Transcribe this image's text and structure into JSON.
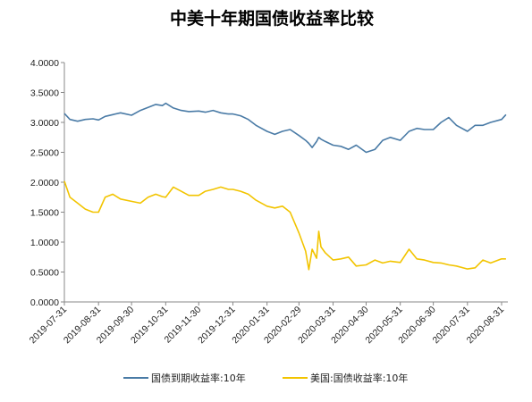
{
  "chart_data": {
    "type": "line",
    "title": "中美十年期国债收益率比较",
    "xlabel": "",
    "ylabel": "",
    "ylim": [
      0,
      4
    ],
    "grid": false,
    "legend_position": "bottom",
    "yticks": [
      "4.0000",
      "3.5000",
      "3.0000",
      "2.5000",
      "2.0000",
      "1.5000",
      "1.0000",
      "0.5000",
      "0.0000"
    ],
    "xticks": [
      "2019-07-31",
      "2019-08-31",
      "2019-09-30",
      "2019-10-31",
      "2019-11-30",
      "2019-12-31",
      "2020-01-31",
      "2020-02-29",
      "2020-03-31",
      "2020-04-30",
      "2020-05-31",
      "2020-06-30",
      "2020-07-31",
      "2020-08-31"
    ],
    "x": [
      "2019-07-31",
      "2019-08-05",
      "2019-08-12",
      "2019-08-19",
      "2019-08-26",
      "2019-08-31",
      "2019-09-06",
      "2019-09-13",
      "2019-09-20",
      "2019-09-30",
      "2019-10-08",
      "2019-10-15",
      "2019-10-22",
      "2019-10-28",
      "2019-10-31",
      "2019-11-07",
      "2019-11-14",
      "2019-11-21",
      "2019-11-30",
      "2019-12-06",
      "2019-12-13",
      "2019-12-20",
      "2019-12-27",
      "2019-12-31",
      "2020-01-07",
      "2020-01-14",
      "2020-01-21",
      "2020-01-31",
      "2020-02-07",
      "2020-02-14",
      "2020-02-21",
      "2020-02-29",
      "2020-03-06",
      "2020-03-09",
      "2020-03-12",
      "2020-03-16",
      "2020-03-18",
      "2020-03-20",
      "2020-03-24",
      "2020-03-31",
      "2020-04-07",
      "2020-04-14",
      "2020-04-21",
      "2020-04-30",
      "2020-05-08",
      "2020-05-15",
      "2020-05-22",
      "2020-05-31",
      "2020-06-08",
      "2020-06-15",
      "2020-06-22",
      "2020-06-30",
      "2020-07-07",
      "2020-07-14",
      "2020-07-21",
      "2020-07-31",
      "2020-08-07",
      "2020-08-14",
      "2020-08-21",
      "2020-08-31",
      "2020-09-04"
    ],
    "series": [
      {
        "name": "国债到期收益率:10年",
        "color": "#4a7ba6",
        "values": [
          3.15,
          3.05,
          3.02,
          3.05,
          3.06,
          3.04,
          3.1,
          3.13,
          3.16,
          3.12,
          3.2,
          3.25,
          3.3,
          3.28,
          3.32,
          3.24,
          3.2,
          3.18,
          3.19,
          3.17,
          3.2,
          3.16,
          3.14,
          3.14,
          3.11,
          3.05,
          2.95,
          2.85,
          2.8,
          2.85,
          2.88,
          2.78,
          2.7,
          2.65,
          2.58,
          2.68,
          2.75,
          2.72,
          2.68,
          2.62,
          2.6,
          2.55,
          2.62,
          2.5,
          2.55,
          2.7,
          2.75,
          2.7,
          2.85,
          2.9,
          2.88,
          2.88,
          3.0,
          3.08,
          2.95,
          2.85,
          2.95,
          2.95,
          3.0,
          3.05,
          3.13
        ]
      },
      {
        "name": "美国:国债收益率:10年",
        "color": "#f2c400",
        "values": [
          2.02,
          1.75,
          1.65,
          1.55,
          1.5,
          1.5,
          1.75,
          1.8,
          1.72,
          1.68,
          1.65,
          1.75,
          1.8,
          1.76,
          1.75,
          1.92,
          1.85,
          1.78,
          1.78,
          1.85,
          1.88,
          1.92,
          1.88,
          1.88,
          1.85,
          1.8,
          1.7,
          1.6,
          1.57,
          1.6,
          1.5,
          1.15,
          0.85,
          0.54,
          0.88,
          0.73,
          1.18,
          0.92,
          0.82,
          0.7,
          0.72,
          0.75,
          0.6,
          0.62,
          0.7,
          0.65,
          0.68,
          0.66,
          0.88,
          0.72,
          0.7,
          0.66,
          0.65,
          0.62,
          0.6,
          0.55,
          0.57,
          0.7,
          0.65,
          0.72,
          0.72
        ]
      }
    ]
  }
}
